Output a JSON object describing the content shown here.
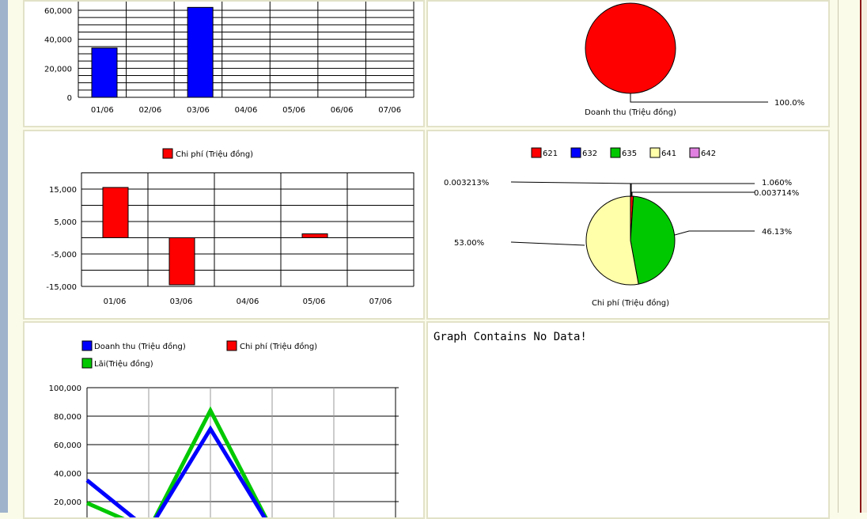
{
  "colors": {
    "revenue": "#0000ff",
    "cost": "#ff0000",
    "profit": "#00c800",
    "c621": "#ff0000",
    "c632": "#0000ff",
    "c635": "#00c800",
    "c641": "#ffffaa",
    "c642": "#e080e0"
  },
  "chart_data": [
    {
      "id": "revenue-bar",
      "type": "bar",
      "categories": [
        "01/06",
        "02/06",
        "03/06",
        "04/06",
        "05/06",
        "06/06",
        "07/06"
      ],
      "series": [
        {
          "values": [
            34000,
            0,
            62000,
            0,
            0,
            0,
            0
          ]
        }
      ],
      "ylim": [
        0,
        60000
      ],
      "yticks": [
        0,
        20000,
        40000,
        60000
      ],
      "ytick_labels": [
        "0",
        "20,000",
        "40,000",
        "60,000"
      ],
      "grid": true
    },
    {
      "id": "revenue-pie",
      "type": "pie",
      "title": "Doanh thu (Triệu đồng)",
      "slices": [
        {
          "value": 100.0,
          "label": "100.0%"
        }
      ]
    },
    {
      "id": "cost-bar",
      "type": "bar",
      "legend": [
        "Chi phí (Triệu đồng)"
      ],
      "categories": [
        "01/06",
        "03/06",
        "04/06",
        "05/06",
        "07/06"
      ],
      "series": [
        {
          "name": "Chi phí (Triệu đồng)",
          "values": [
            15500,
            -14500,
            0,
            1200,
            0
          ]
        }
      ],
      "ylim": [
        -15000,
        20000
      ],
      "yticks": [
        -15000,
        -5000,
        5000,
        15000
      ],
      "ytick_labels": [
        "-15,000",
        "-5,000",
        "5,000",
        "15,000"
      ],
      "grid": true
    },
    {
      "id": "cost-pie",
      "type": "pie",
      "title": "Chi phí (Triệu đồng)",
      "legend": [
        "621",
        "632",
        "635",
        "641",
        "642"
      ],
      "slices": [
        {
          "name": "621",
          "value": 1.06,
          "label": "1.060%"
        },
        {
          "name": "632",
          "value": 0.0037,
          "label": "0.003714%"
        },
        {
          "name": "635",
          "value": 46.13,
          "label": "46.13%"
        },
        {
          "name": "641",
          "value": 53.0,
          "label": "53.00%"
        },
        {
          "name": "642",
          "value": 0.0032,
          "label": "0.003213%"
        }
      ]
    },
    {
      "id": "combined-line",
      "type": "line",
      "legend": [
        "Doanh thu (Triệu đồng)",
        "Chi phí (Triệu đồng)",
        "Lãi(Triệu đồng)"
      ],
      "x": [
        0,
        1,
        2,
        3,
        4,
        5
      ],
      "series": [
        {
          "name": "Doanh thu (Triệu đồng)",
          "values": [
            35000,
            0,
            71000,
            0,
            null,
            null
          ]
        },
        {
          "name": "Chi phí (Triệu đồng)",
          "values": [
            null,
            null,
            null,
            null,
            null,
            null
          ]
        },
        {
          "name": "Lãi(Triệu đồng)",
          "values": [
            19000,
            0,
            84000,
            0,
            null,
            null
          ]
        }
      ],
      "ylim": [
        0,
        100000
      ],
      "yticks": [
        20000,
        40000,
        60000,
        80000,
        100000
      ],
      "ytick_labels": [
        "20,000",
        "40,000",
        "60,000",
        "80,000",
        "100,000"
      ],
      "grid": true
    }
  ],
  "empty_panel": {
    "message": "Graph Contains No Data!"
  }
}
